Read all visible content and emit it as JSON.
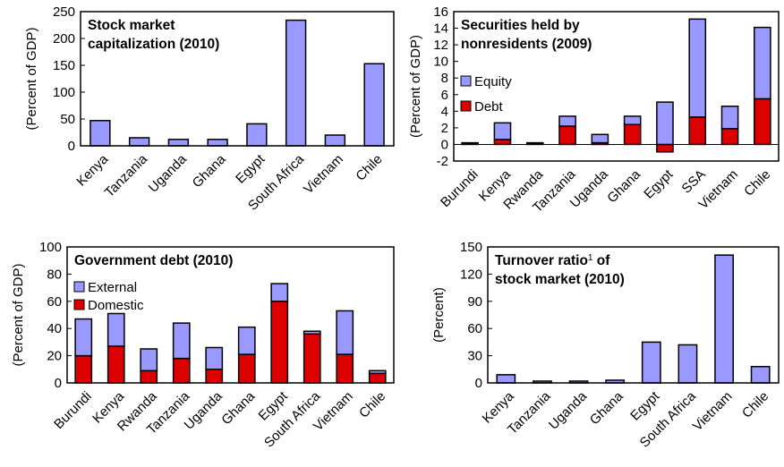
{
  "chart_data": [
    {
      "type": "bar",
      "title_lines": [
        [
          {
            "text": "Stock market"
          }
        ],
        [
          {
            "text": "capitalization (2010)"
          }
        ]
      ],
      "y_label": "(Percent of GDP)",
      "categories": [
        "Kenya",
        "Tanzania",
        "Uganda",
        "Ghana",
        "Egypt",
        "South Africa",
        "Vietnam",
        "Chile"
      ],
      "values": [
        47,
        15,
        12,
        12,
        41,
        234,
        20,
        153
      ],
      "color": "#9999ff",
      "ylim": [
        0,
        250
      ],
      "yticks": [
        0,
        50,
        100,
        150,
        200,
        250
      ],
      "grid": false
    },
    {
      "type": "stacked_bar",
      "title_lines": [
        [
          {
            "text": "Securities held by"
          }
        ],
        [
          {
            "text": "nonresidents (2009)"
          }
        ]
      ],
      "y_label": "(Percent of GDP)",
      "categories": [
        "Burundi",
        "Kenya",
        "Rwanda",
        "Tanzania",
        "Uganda",
        "Ghana",
        "Egypt",
        "SSA",
        "Vietnam",
        "Chile"
      ],
      "series": [
        {
          "name": "Debt",
          "color": "#dd0000",
          "values": [
            0.1,
            0.6,
            0.05,
            2.2,
            0.2,
            2.4,
            -0.9,
            3.3,
            1.9,
            5.5
          ]
        },
        {
          "name": "Equity",
          "color": "#9999ff",
          "values": [
            0.1,
            2.0,
            0.15,
            1.2,
            1.0,
            1.0,
            5.1,
            11.8,
            2.7,
            8.6
          ]
        }
      ],
      "legend": "upper left",
      "ylim": [
        -2,
        16
      ],
      "yticks": [
        -2,
        0,
        2,
        4,
        6,
        8,
        10,
        12,
        14,
        16
      ],
      "grid": false
    },
    {
      "type": "stacked_bar",
      "title_lines": [
        [
          {
            "text": "Government debt (2010)"
          }
        ]
      ],
      "y_label": "(Percent of GDP)",
      "categories": [
        "Burundi",
        "Kenya",
        "Rwanda",
        "Tanzania",
        "Uganda",
        "Ghana",
        "Egypt",
        "South Africa",
        "Vietnam",
        "Chile"
      ],
      "series": [
        {
          "name": "Domestic",
          "color": "#dd0000",
          "values": [
            20,
            27,
            9,
            18,
            10,
            21,
            60,
            36,
            21,
            7
          ]
        },
        {
          "name": "External",
          "color": "#9999ff",
          "values": [
            27,
            24,
            16,
            26,
            16,
            20,
            13,
            2,
            32,
            2
          ]
        }
      ],
      "legend": "upper left",
      "ylim": [
        0,
        100
      ],
      "yticks": [
        0,
        20,
        40,
        60,
        80,
        100
      ],
      "grid": false
    },
    {
      "type": "bar",
      "title_lines": [
        [
          {
            "text": "Turnover ratio"
          },
          {
            "text": "1",
            "superscript": true
          },
          {
            "text": " of"
          }
        ],
        [
          {
            "text": "stock market (2010)"
          }
        ]
      ],
      "y_label": "(Percent)",
      "categories": [
        "Kenya",
        "Tanzania",
        "Uganda",
        "Ghana",
        "Egypt",
        "South Africa",
        "Vietnam",
        "Chile"
      ],
      "values": [
        9,
        2,
        2,
        3,
        45,
        42,
        141,
        18
      ],
      "color": "#9999ff",
      "ylim": [
        0,
        150
      ],
      "yticks": [
        0,
        30,
        60,
        90,
        120,
        150
      ],
      "grid": false
    }
  ]
}
